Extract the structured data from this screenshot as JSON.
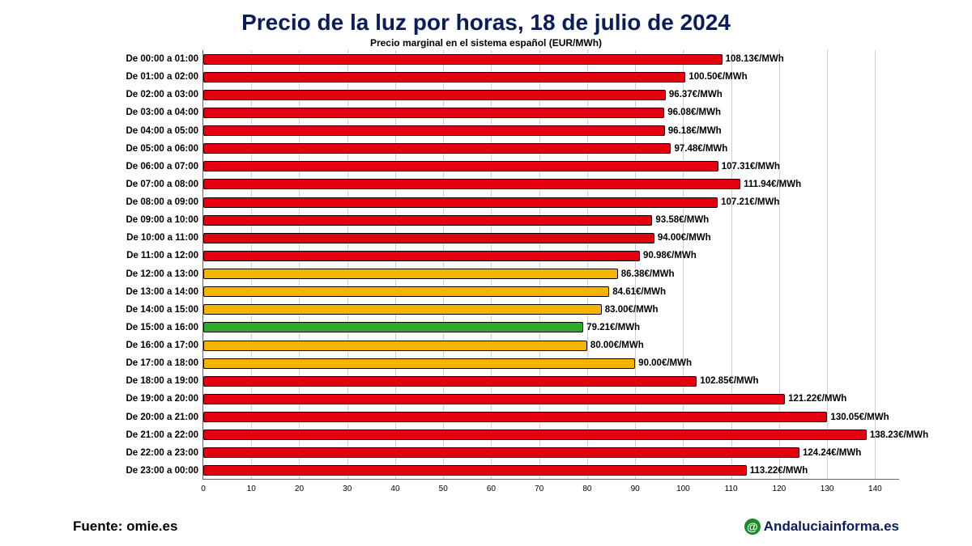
{
  "title": "Precio de la luz por horas, 18 de julio de 2024",
  "subtitle": "Precio marginal en el sistema español (EUR/MWh)",
  "source_label": "Fuente: omie.es",
  "brand_label": "Andaluciainforma.es",
  "chart": {
    "type": "bar-horizontal",
    "x_min": 0,
    "x_max": 145,
    "x_tick_step": 10,
    "x_ticks": [
      0,
      10,
      20,
      30,
      40,
      50,
      60,
      70,
      80,
      90,
      100,
      110,
      120,
      130,
      140
    ],
    "unit_suffix": "€/MWh",
    "colors": {
      "red": "#e3000f",
      "yellow": "#f5b400",
      "green": "#2fa82f",
      "grid": "#d0d0d0",
      "axis": "#666666",
      "title": "#0a1c5a",
      "text": "#000000",
      "bg": "#ffffff"
    },
    "title_fontsize": 28,
    "subtitle_fontsize": 12,
    "label_fontsize": 11.5,
    "tick_fontsize": 10,
    "data": [
      {
        "label": "De 00:00 a 01:00",
        "value": 108.13,
        "color": "red"
      },
      {
        "label": "De 01:00 a 02:00",
        "value": 100.5,
        "color": "red"
      },
      {
        "label": "De 02:00 a 03:00",
        "value": 96.37,
        "color": "red"
      },
      {
        "label": "De 03:00 a 04:00",
        "value": 96.08,
        "color": "red"
      },
      {
        "label": "De 04:00 a 05:00",
        "value": 96.18,
        "color": "red"
      },
      {
        "label": "De 05:00 a 06:00",
        "value": 97.48,
        "color": "red"
      },
      {
        "label": "De 06:00 a 07:00",
        "value": 107.31,
        "color": "red"
      },
      {
        "label": "De 07:00 a 08:00",
        "value": 111.94,
        "color": "red"
      },
      {
        "label": "De 08:00 a 09:00",
        "value": 107.21,
        "color": "red"
      },
      {
        "label": "De 09:00 a 10:00",
        "value": 93.58,
        "color": "red"
      },
      {
        "label": "De 10:00 a 11:00",
        "value": 94.0,
        "color": "red"
      },
      {
        "label": "De 11:00 a 12:00",
        "value": 90.98,
        "color": "red"
      },
      {
        "label": "De 12:00 a 13:00",
        "value": 86.38,
        "color": "yellow"
      },
      {
        "label": "De 13:00 a 14:00",
        "value": 84.61,
        "color": "yellow"
      },
      {
        "label": "De 14:00 a 15:00",
        "value": 83.0,
        "color": "yellow"
      },
      {
        "label": "De 15:00 a 16:00",
        "value": 79.21,
        "color": "green"
      },
      {
        "label": "De 16:00 a 17:00",
        "value": 80.0,
        "color": "yellow"
      },
      {
        "label": "De 17:00 a 18:00",
        "value": 90.0,
        "color": "yellow"
      },
      {
        "label": "De 18:00 a 19:00",
        "value": 102.85,
        "color": "red"
      },
      {
        "label": "De 19:00 a 20:00",
        "value": 121.22,
        "color": "red"
      },
      {
        "label": "De 20:00 a 21:00",
        "value": 130.05,
        "color": "red"
      },
      {
        "label": "De 21:00 a 22:00",
        "value": 138.23,
        "color": "red"
      },
      {
        "label": "De 22:00 a 23:00",
        "value": 124.24,
        "color": "red"
      },
      {
        "label": "De 23:00 a 00:00",
        "value": 113.22,
        "color": "red"
      }
    ]
  }
}
